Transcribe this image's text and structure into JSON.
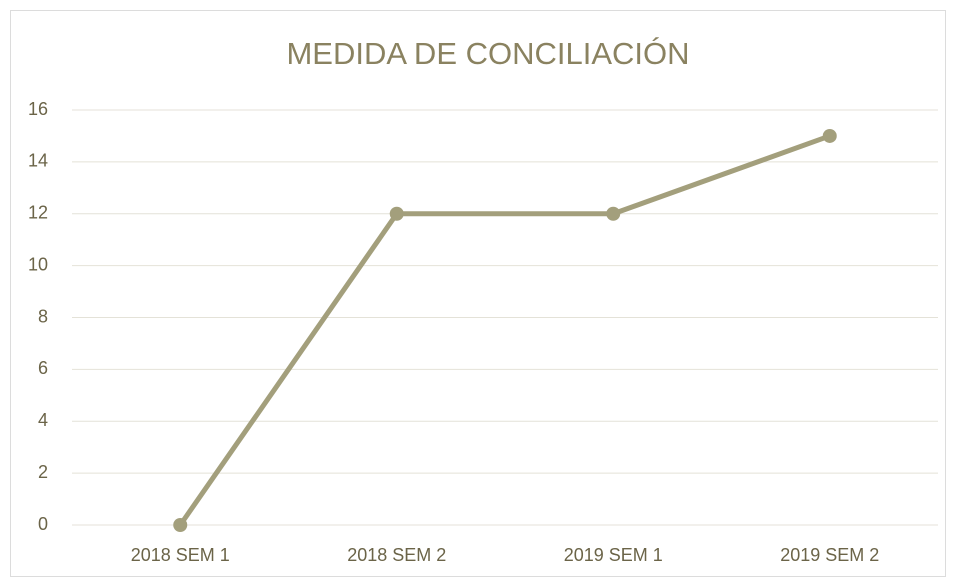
{
  "chart_data": {
    "type": "line",
    "title": "MEDIDA DE CONCILIACIÓN",
    "categories": [
      "2018 SEM 1",
      "2018 SEM 2",
      "2019 SEM 1",
      "2019 SEM 2"
    ],
    "series": [
      {
        "name": "MEDIDA DE CONCILIACIÓN",
        "color": "#a39f7c",
        "values": [
          0,
          12,
          12,
          15
        ]
      }
    ],
    "ylim": [
      0,
      16
    ],
    "yticks": [
      0,
      2,
      4,
      6,
      8,
      10,
      12,
      14,
      16
    ],
    "grid": true
  }
}
